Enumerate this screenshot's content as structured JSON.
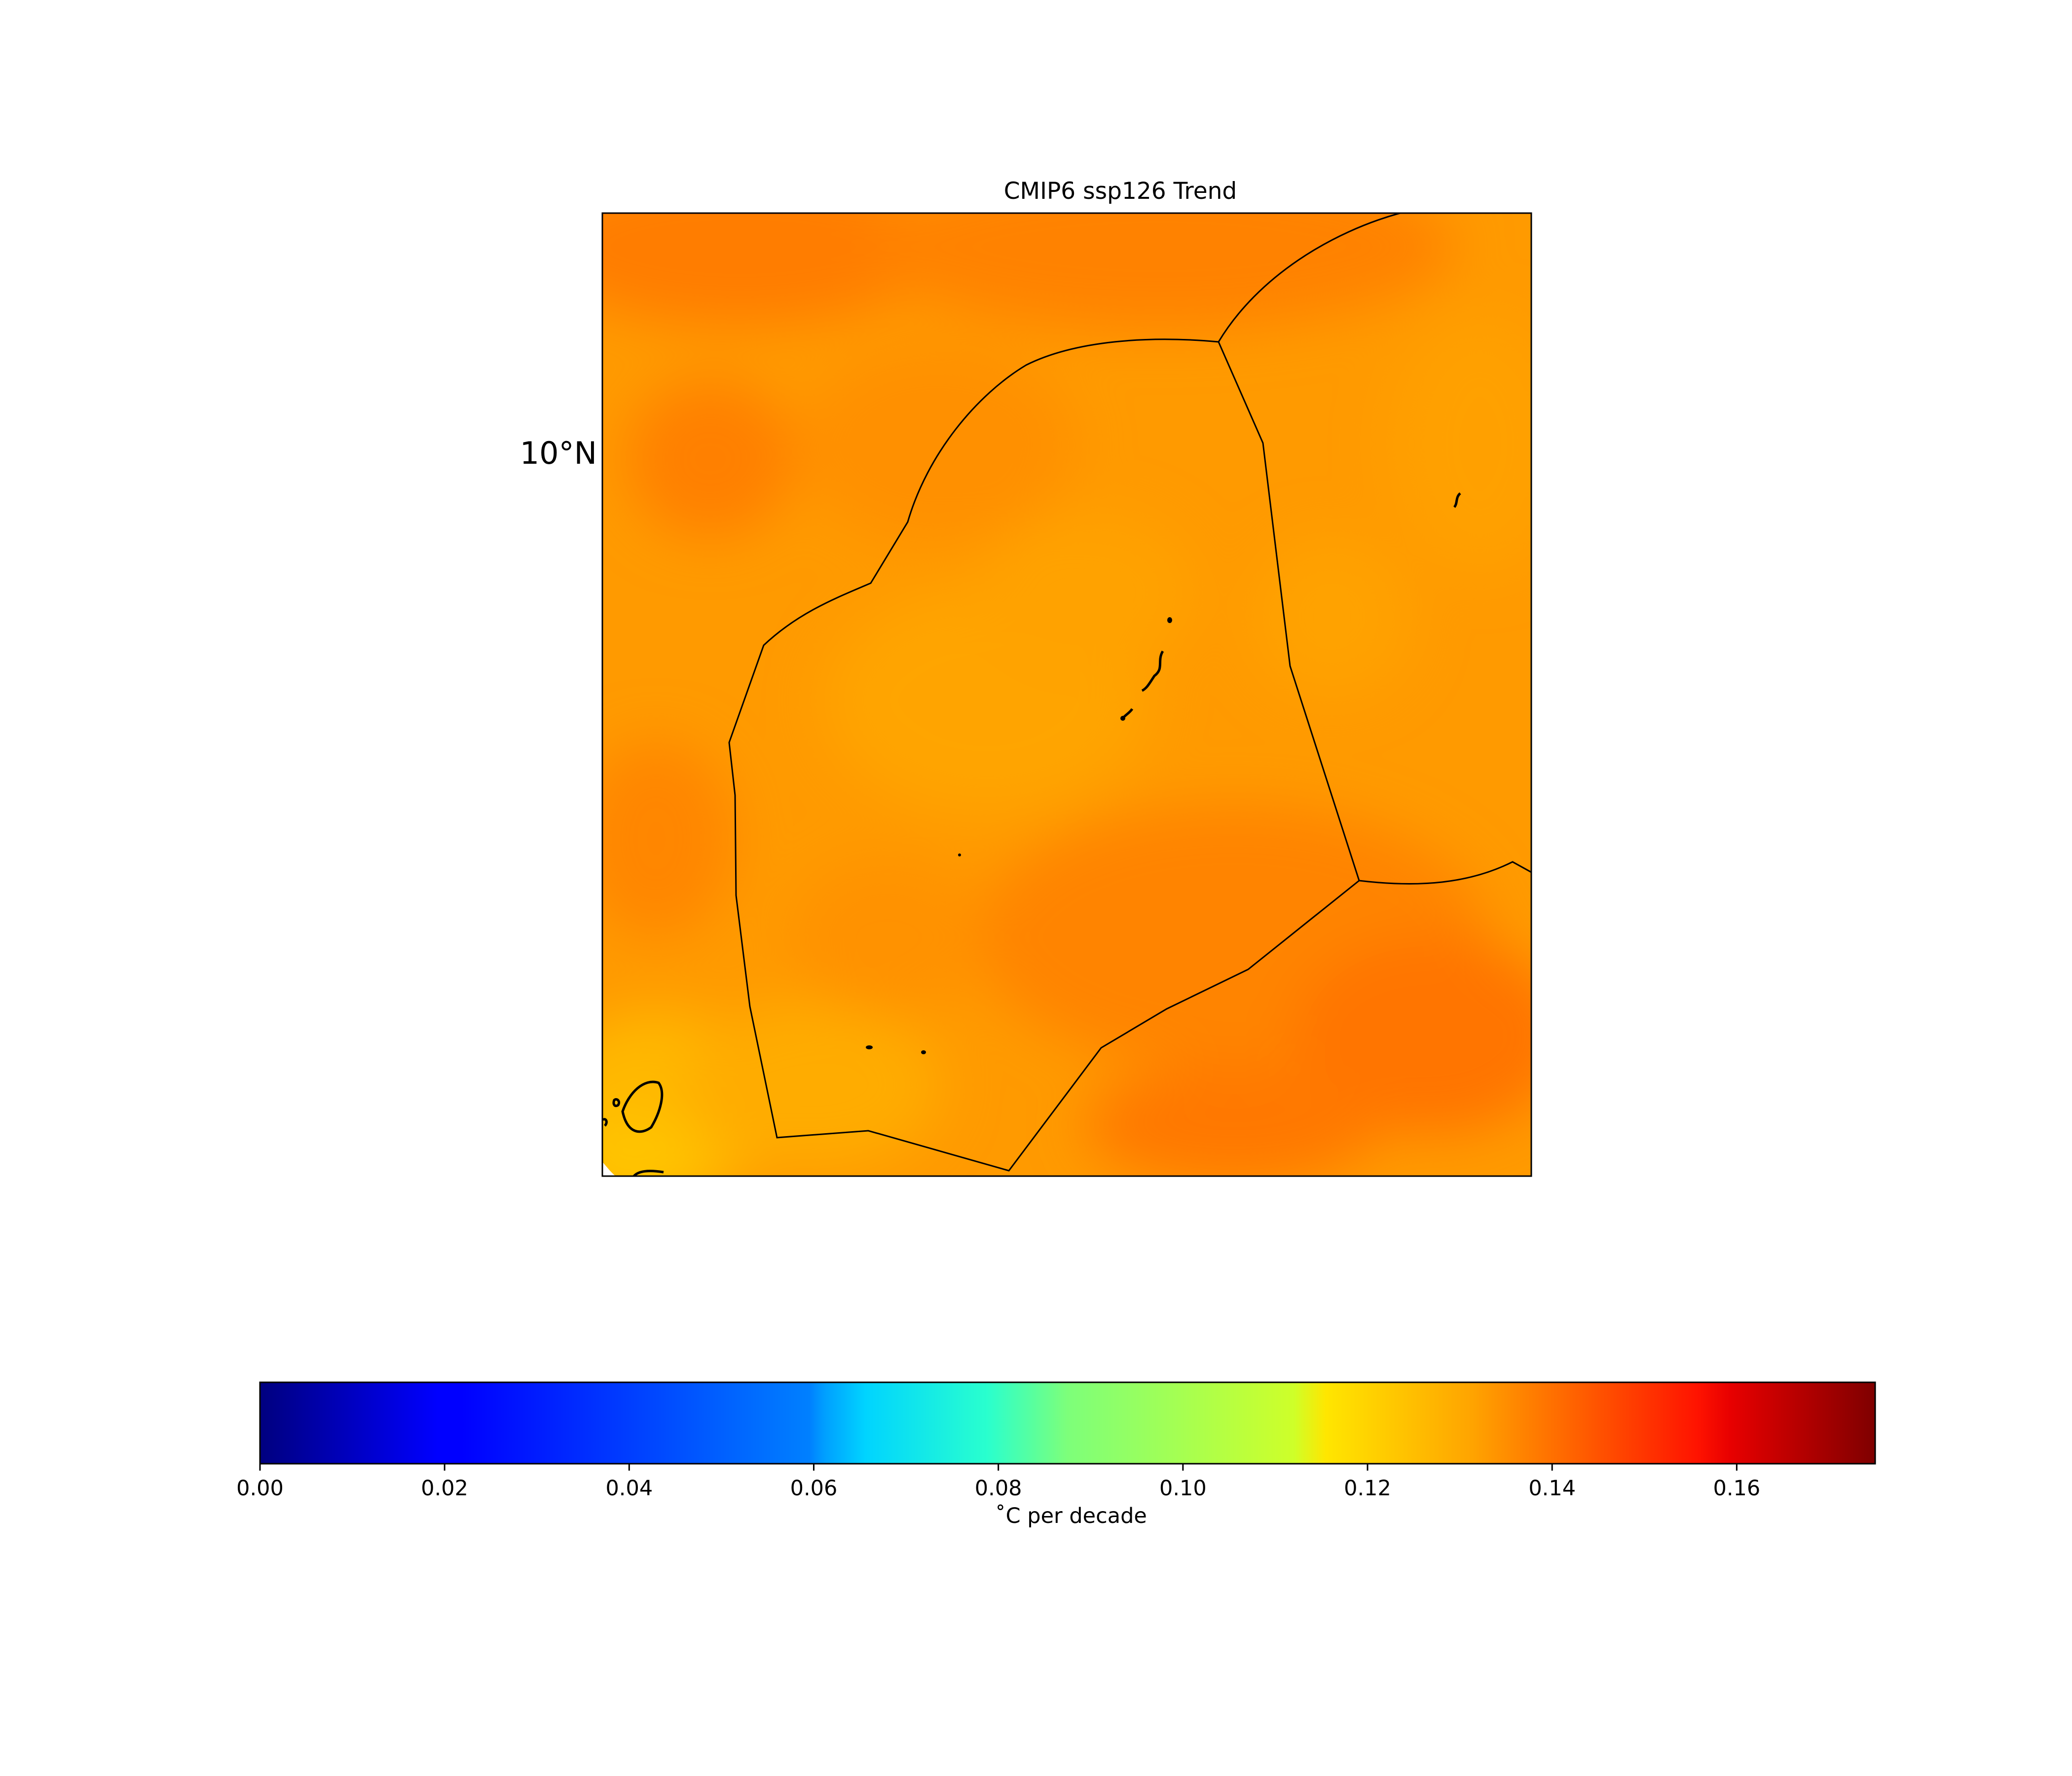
{
  "title": "CMIP6 ssp126 Trend",
  "lat_label": "10°N",
  "colorbar": {
    "colormap": "jet",
    "vmin": 0.0,
    "vmax": 0.175,
    "ticks": [
      "0.00",
      "0.02",
      "0.04",
      "0.06",
      "0.08",
      "0.10",
      "0.12",
      "0.14",
      "0.16"
    ],
    "tick_values": [
      0.0,
      0.02,
      0.04,
      0.06,
      0.08,
      0.1,
      0.12,
      0.14,
      0.16
    ],
    "label": "˚C per decade"
  },
  "field": {
    "variable": "trend",
    "approx_range": [
      0.125,
      0.145
    ],
    "colors": {
      "dominant": "#ff9a00",
      "warm_patches": "#ff7a00",
      "cool_patches": "#ffb000"
    }
  }
}
